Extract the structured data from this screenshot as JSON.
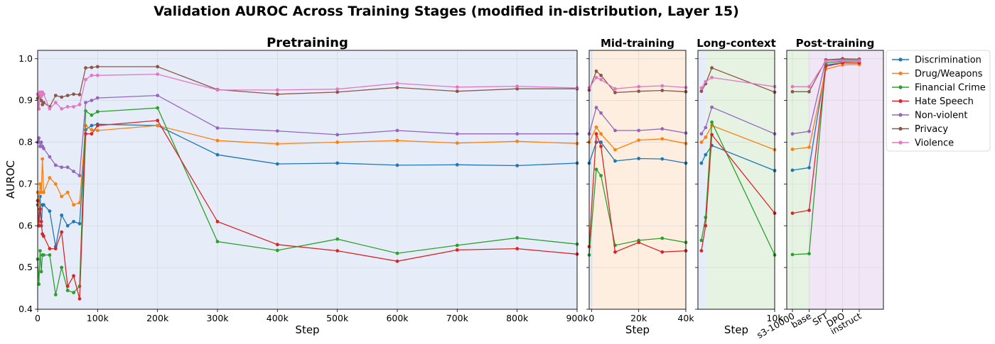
{
  "chart_data": {
    "type": "line",
    "title": "Validation AUROC Across Training Stages (modified in-distribution, Layer 15)",
    "ylabel": "AUROC",
    "ylim": [
      0.4,
      1.02
    ],
    "yticks": [
      "0.4",
      "0.5",
      "0.6",
      "0.7",
      "0.8",
      "0.9",
      "1.0"
    ],
    "grid": true,
    "legend_position": "right",
    "series_names": [
      "Discrimination",
      "Drug/Weapons",
      "Financial Crime",
      "Hate Speech",
      "Non-violent",
      "Privacy",
      "Violence"
    ],
    "colors": [
      "#1f77b4",
      "#ff7f0e",
      "#2ca02c",
      "#d62728",
      "#9467bd",
      "#8c564b",
      "#e377c2"
    ],
    "panels": [
      {
        "title": "Pretraining",
        "xlabel": "Step",
        "background": "#e6edf9",
        "xlim": [
          0,
          900000
        ],
        "xtick_values": [
          0,
          100000,
          200000,
          300000,
          400000,
          500000,
          600000,
          700000,
          800000,
          900000
        ],
        "xticks": [
          "0",
          "100k",
          "200k",
          "300k",
          "400k",
          "500k",
          "600k",
          "700k",
          "800k",
          "900k"
        ],
        "x": [
          0,
          2000,
          4000,
          6000,
          8000,
          10000,
          20000,
          30000,
          40000,
          50000,
          60000,
          70000,
          80000,
          90000,
          100000,
          200000,
          300000,
          400000,
          500000,
          600000,
          700000,
          800000,
          900000
        ],
        "series": [
          {
            "values": [
              0.65,
              0.6,
              0.67,
              0.6,
              0.65,
              0.65,
              0.635,
              0.55,
              0.625,
              0.6,
              0.61,
              0.605,
              0.83,
              0.84,
              0.843,
              0.84,
              0.77,
              0.748,
              0.75,
              0.745,
              0.746,
              0.744,
              0.75
            ]
          },
          {
            "values": [
              0.68,
              0.65,
              0.7,
              0.68,
              0.76,
              0.68,
              0.715,
              0.7,
              0.67,
              0.68,
              0.65,
              0.655,
              0.84,
              0.83,
              0.828,
              0.84,
              0.804,
              0.796,
              0.8,
              0.804,
              0.798,
              0.802,
              0.797
            ]
          },
          {
            "values": [
              0.52,
              0.46,
              0.54,
              0.49,
              0.53,
              0.53,
              0.53,
              0.435,
              0.5,
              0.445,
              0.44,
              0.455,
              0.875,
              0.865,
              0.873,
              0.882,
              0.562,
              0.541,
              0.568,
              0.534,
              0.553,
              0.571,
              0.556
            ]
          },
          {
            "values": [
              0.66,
              0.6,
              0.64,
              0.61,
              0.58,
              0.575,
              0.545,
              0.545,
              0.585,
              0.455,
              0.48,
              0.425,
              0.82,
              0.82,
              0.84,
              0.852,
              0.61,
              0.555,
              0.54,
              0.515,
              0.542,
              0.545,
              0.532
            ]
          },
          {
            "values": [
              0.8,
              0.81,
              0.79,
              0.8,
              0.79,
              0.785,
              0.765,
              0.745,
              0.74,
              0.74,
              0.73,
              0.72,
              0.895,
              0.9,
              0.906,
              0.912,
              0.834,
              0.827,
              0.818,
              0.828,
              0.82,
              0.82,
              0.82
            ]
          },
          {
            "values": [
              0.905,
              0.88,
              0.91,
              0.9,
              0.89,
              0.895,
              0.885,
              0.912,
              0.908,
              0.912,
              0.915,
              0.914,
              0.978,
              0.979,
              0.981,
              0.981,
              0.926,
              0.915,
              0.92,
              0.931,
              0.922,
              0.928,
              0.928
            ]
          },
          {
            "values": [
              0.915,
              0.88,
              0.92,
              0.91,
              0.92,
              0.915,
              0.88,
              0.895,
              0.88,
              0.885,
              0.885,
              0.89,
              0.95,
              0.96,
              0.96,
              0.963,
              0.925,
              0.925,
              0.927,
              0.941,
              0.932,
              0.934,
              0.93
            ]
          }
        ]
      },
      {
        "title": "Mid-training",
        "xlabel": "Step",
        "background": "#fdeee0",
        "xlim": [
          -1000,
          40000
        ],
        "xtick_values": [
          0,
          20000,
          40000
        ],
        "xticks": [
          "0",
          "20k",
          "40k"
        ],
        "x": [
          -1000,
          2000,
          4000,
          10000,
          20000,
          30000,
          40000
        ],
        "series": [
          {
            "values": [
              0.75,
              0.8,
              0.8,
              0.755,
              0.761,
              0.76,
              0.75
            ]
          },
          {
            "values": [
              0.8,
              0.836,
              0.82,
              0.782,
              0.805,
              0.808,
              0.797
            ]
          },
          {
            "values": [
              0.53,
              0.735,
              0.72,
              0.553,
              0.565,
              0.57,
              0.56
            ]
          },
          {
            "values": [
              0.55,
              0.82,
              0.79,
              0.537,
              0.56,
              0.537,
              0.54
            ]
          },
          {
            "values": [
              0.82,
              0.883,
              0.87,
              0.828,
              0.828,
              0.832,
              0.822
            ]
          },
          {
            "values": [
              0.925,
              0.97,
              0.96,
              0.919,
              0.922,
              0.924,
              0.921
            ]
          },
          {
            "values": [
              0.93,
              0.955,
              0.95,
              0.928,
              0.933,
              0.935,
              0.931
            ]
          }
        ]
      },
      {
        "title": "Long-context",
        "xlabel": "Step",
        "background": "#e6f3e3",
        "xlim": [
          -1000,
          10000
        ],
        "xtick_values": [
          10000
        ],
        "xticks": [
          "10k"
        ],
        "x": [
          -500,
          100,
          1000,
          10000
        ],
        "series": [
          {
            "values": [
              0.75,
              0.77,
              0.792,
              0.732
            ]
          },
          {
            "values": [
              0.8,
              0.812,
              0.84,
              0.782
            ]
          },
          {
            "values": [
              0.565,
              0.62,
              0.848,
              0.53
            ]
          },
          {
            "values": [
              0.54,
              0.6,
              0.818,
              0.63
            ]
          },
          {
            "values": [
              0.82,
              0.835,
              0.884,
              0.82
            ]
          },
          {
            "values": [
              0.922,
              0.94,
              0.978,
              0.92
            ]
          },
          {
            "values": [
              0.93,
              0.945,
              0.955,
              0.933
            ]
          }
        ]
      },
      {
        "title": "Post-training",
        "xlabel": "",
        "categories": [
          "s3-10000",
          "base",
          "SFT",
          "DPO",
          "instruct"
        ],
        "backgrounds": [
          "#e6f3e3",
          "#f1e6f6"
        ],
        "series": [
          {
            "values": [
              0.733,
              0.739,
              0.985,
              0.99,
              0.99
            ]
          },
          {
            "values": [
              0.783,
              0.788,
              0.975,
              0.985,
              0.986
            ]
          },
          {
            "values": [
              0.531,
              0.533,
              0.99,
              0.993,
              0.994
            ]
          },
          {
            "values": [
              0.63,
              0.637,
              0.982,
              0.99,
              0.99
            ]
          },
          {
            "values": [
              0.82,
              0.826,
              0.997,
              0.998,
              0.998
            ]
          },
          {
            "values": [
              0.921,
              0.921,
              0.997,
              1.0,
              0.999
            ]
          },
          {
            "values": [
              0.933,
              0.933,
              0.994,
              0.995,
              0.995
            ]
          }
        ]
      }
    ]
  }
}
